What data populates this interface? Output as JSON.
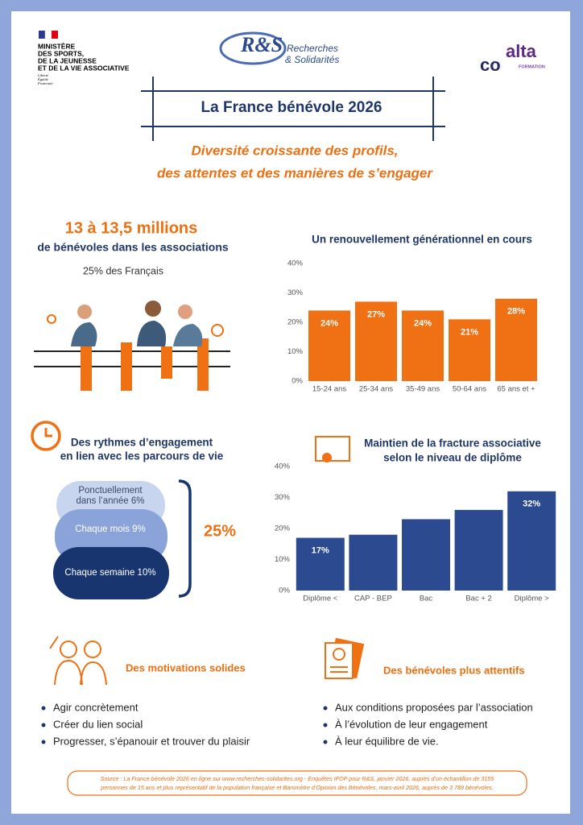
{
  "header": {
    "ministry": [
      "MINISTÈRE",
      "DES SPORTS,",
      "DE LA JEUNESSE",
      "ET DE LA VIE ASSOCIATIVE"
    ],
    "motto": [
      "Liberté",
      "Égalité",
      "Fraternité"
    ],
    "partner": {
      "logo": "R&S",
      "lines": [
        "Recherches",
        "& Solidarités"
      ]
    },
    "alta": {
      "top": "alta",
      "bottom": "co",
      "sub": "FORMATION"
    }
  },
  "title": "La France bénévole 2026",
  "subtitle": [
    "Diversité croissante des profils,",
    "des attentes et des manières de s’engager"
  ],
  "headline": {
    "figure": "13 à 13,5 millions",
    "text": "de bénévoles dans les associations",
    "share": "25% des Français"
  },
  "rhythms": {
    "title": [
      "Des rythmes d’engagement",
      "en lien avec les parcours de vie"
    ],
    "levels": [
      [
        "Ponctuellement",
        "dans l’année 6%"
      ],
      [
        "Chaque mois 9%"
      ],
      [
        "Chaque semaine 10%"
      ]
    ],
    "total": "25%"
  },
  "motivations": {
    "title": "Des motivations solides",
    "items": [
      "Agir concrètement",
      "Créer du lien social",
      "Progresser, s’épanouir et trouver du plaisir"
    ]
  },
  "attentive": {
    "title": "Des bénévoles plus attentifs",
    "items": [
      "Aux conditions proposées par l’association",
      "À l’évolution de leur engagement",
      "À leur équilibre de vie."
    ]
  },
  "source": [
    "Source : La France bénévole 2026 en ligne sur www.recherches-solidarites.org - Enquêtes IFOP pour R&S, janvier 2026, auprès d’un échantillon de 3155",
    "personnes de 15 ans et plus représentatif de la population française et Baromètre d’Opinion des Bénévoles, mars-avril 2026, auprès de 3 789 bénévoles."
  ],
  "chart_data": [
    {
      "type": "bar",
      "title": "Un renouvellement générationnel en cours",
      "categories": [
        "15-24 ans",
        "25-34 ans",
        "35-49 ans",
        "50-64 ans",
        "65 ans et +"
      ],
      "values": [
        24,
        27,
        24,
        21,
        28
      ],
      "value_labels": [
        "24%",
        "27%",
        "24%",
        "21%",
        "28%"
      ],
      "color": "#f07014",
      "ylim": [
        0,
        40
      ],
      "yticks": [
        {
          "value": 0,
          "label": "0%"
        },
        {
          "value": 10,
          "label": "10%"
        },
        {
          "value": 20,
          "label": "20%"
        },
        {
          "value": 30,
          "label": "30%"
        },
        {
          "value": 40,
          "label": "40%"
        }
      ],
      "grid": false
    },
    {
      "type": "bar",
      "title": [
        "Maintien de la fracture associative",
        "selon le niveau de diplôme"
      ],
      "categories": [
        "Diplôme <",
        "CAP - BEP",
        "Bac",
        "Bac + 2",
        "Diplôme >"
      ],
      "values": [
        17,
        18,
        23,
        26,
        32
      ],
      "value_labels": [
        "17%",
        null,
        null,
        null,
        "32%"
      ],
      "color": "#2c4a90",
      "ylim": [
        0,
        40
      ],
      "yticks": [
        {
          "value": 0,
          "label": "0%"
        },
        {
          "value": 10,
          "label": "10%"
        },
        {
          "value": 20,
          "label": "20%"
        },
        {
          "value": 30,
          "label": "30%"
        },
        {
          "value": 40,
          "label": "40%"
        }
      ],
      "grid": false
    }
  ]
}
